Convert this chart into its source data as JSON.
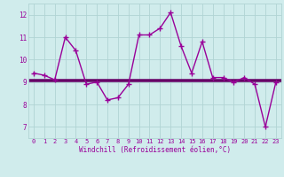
{
  "x": [
    0,
    1,
    2,
    3,
    4,
    5,
    6,
    7,
    8,
    9,
    10,
    11,
    12,
    13,
    14,
    15,
    16,
    17,
    18,
    19,
    20,
    21,
    22,
    23
  ],
  "y": [
    9.4,
    9.3,
    9.1,
    11.0,
    10.4,
    8.9,
    9.0,
    8.2,
    8.3,
    8.9,
    11.1,
    11.1,
    11.4,
    12.1,
    10.6,
    9.4,
    10.8,
    9.2,
    9.2,
    9.0,
    9.2,
    8.9,
    7.0,
    9.0
  ],
  "hlines": [
    9.05,
    9.12
  ],
  "line_color": "#990099",
  "hline_color": "#660066",
  "bg_color": "#d0ecec",
  "grid_color": "#b0d4d4",
  "xlabel": "Windchill (Refroidissement éolien,°C)",
  "yticks": [
    7,
    8,
    9,
    10,
    11,
    12
  ],
  "xlim": [
    -0.5,
    23.5
  ],
  "ylim": [
    6.5,
    12.5
  ],
  "marker": "+",
  "markersize": 4,
  "linewidth": 1.0,
  "tick_fontsize": 5.0,
  "xlabel_fontsize": 5.5
}
